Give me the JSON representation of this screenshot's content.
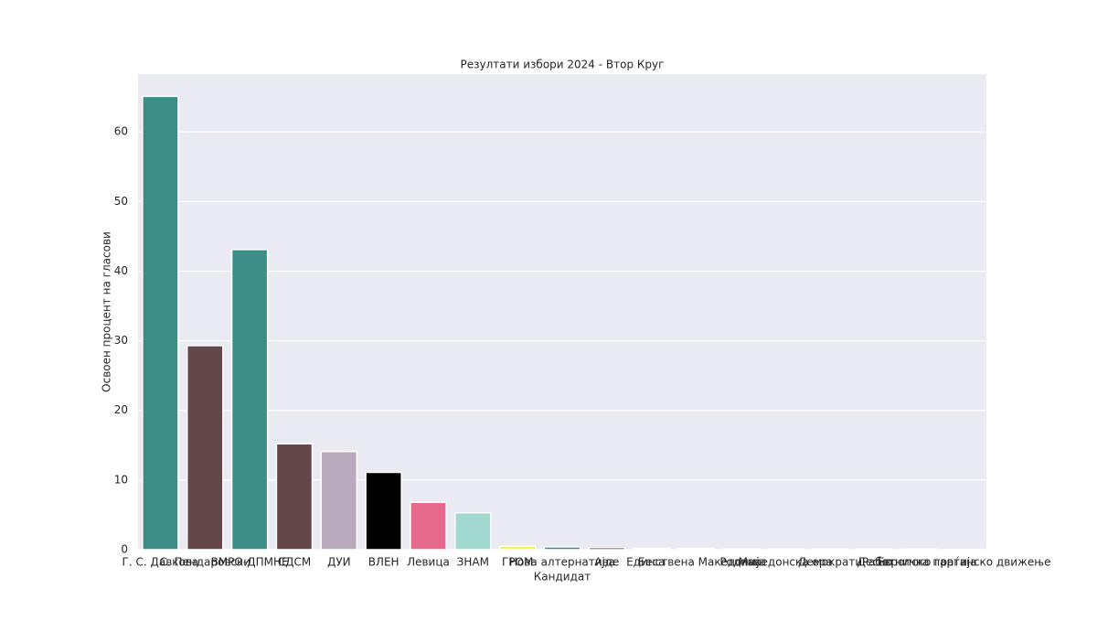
{
  "chart_data": {
    "type": "bar",
    "title": "Резултати избори 2024 - Втор Круг",
    "x_label": "Кандидат",
    "y_label": "Освоен процент на гласови",
    "categories": [
      "Г. С. Давкова",
      "С. Пендаровски",
      "ВМРО-ДПМНЕ",
      "СДСМ",
      "ДУИ",
      "ВЛЕН",
      "Левица",
      "ЗНАМ",
      "ГРОМ",
      "Нова алтернатива",
      "Ајде",
      "Беса",
      "Единствена Македонија",
      "Родина",
      "Македонска ера",
      "Демократи",
      "Десно",
      "Работничка партија",
      "Европско граѓанско движење"
    ],
    "values": [
      65.1,
      29.3,
      43.1,
      15.2,
      14.1,
      11.1,
      6.8,
      5.3,
      0.5,
      0.4,
      0.3,
      0.2,
      0.2,
      0.1,
      0.1,
      0.1,
      0.1,
      0.1,
      0.05
    ],
    "colors": [
      "#3b8e86",
      "#634749",
      "#3b8e86",
      "#634749",
      "#b9aabd",
      "#000000",
      "#e5698a",
      "#a1d9d1",
      "#f0f060",
      "#3b8e86",
      "#634749",
      "#ffffff",
      "#ffffff",
      "#ffffff",
      "#ffffff",
      "#ffffff",
      "#ffffff",
      "#ffffff",
      "#ffffff"
    ],
    "ylim": [
      0,
      68.3
    ],
    "yticks": [
      0,
      10,
      20,
      30,
      40,
      50,
      60
    ],
    "grid": true
  }
}
